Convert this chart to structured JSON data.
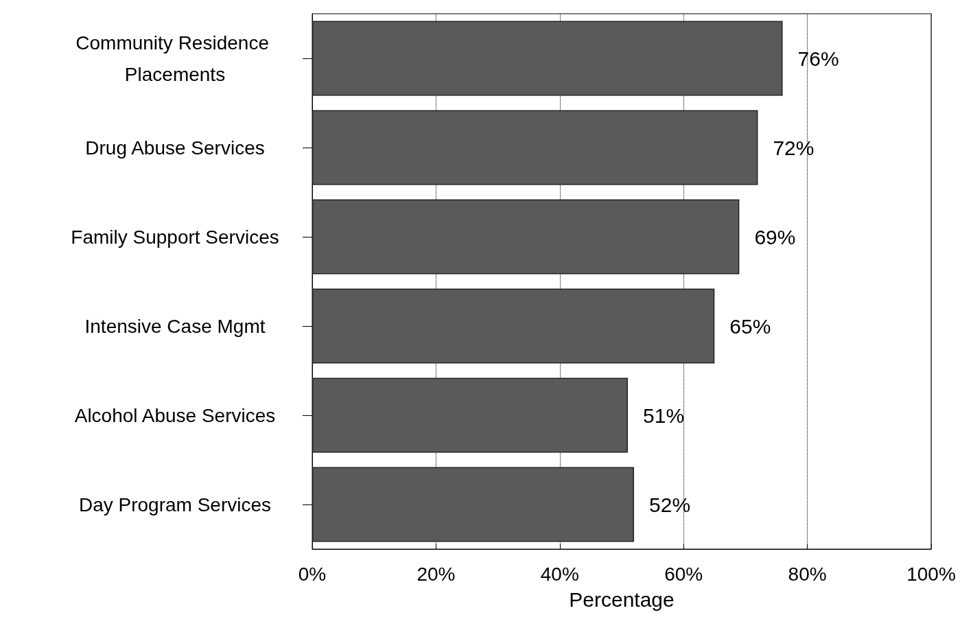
{
  "chart_data": {
    "type": "bar",
    "orientation": "horizontal",
    "categories": [
      "Community Residence Placements",
      "Drug Abuse Services",
      "Family Support Services",
      "Intensive Case Mgmt",
      "Alcohol Abuse Services",
      "Day Program Services"
    ],
    "values": [
      76,
      72,
      69,
      65,
      51,
      52
    ],
    "value_labels": [
      "76%",
      "72%",
      "69%",
      "65%",
      "51%",
      "52%"
    ],
    "color": "#5a5a5a",
    "xlabel": "Percentage",
    "xlim": [
      0,
      100
    ],
    "xticks": [
      {
        "value": 0,
        "label": "0%"
      },
      {
        "value": 20,
        "label": "20%"
      },
      {
        "value": 40,
        "label": "40%"
      },
      {
        "value": 60,
        "label": "60%"
      },
      {
        "value": 80,
        "label": "80%"
      },
      {
        "value": 100,
        "label": "100%"
      }
    ],
    "grid": "x"
  }
}
